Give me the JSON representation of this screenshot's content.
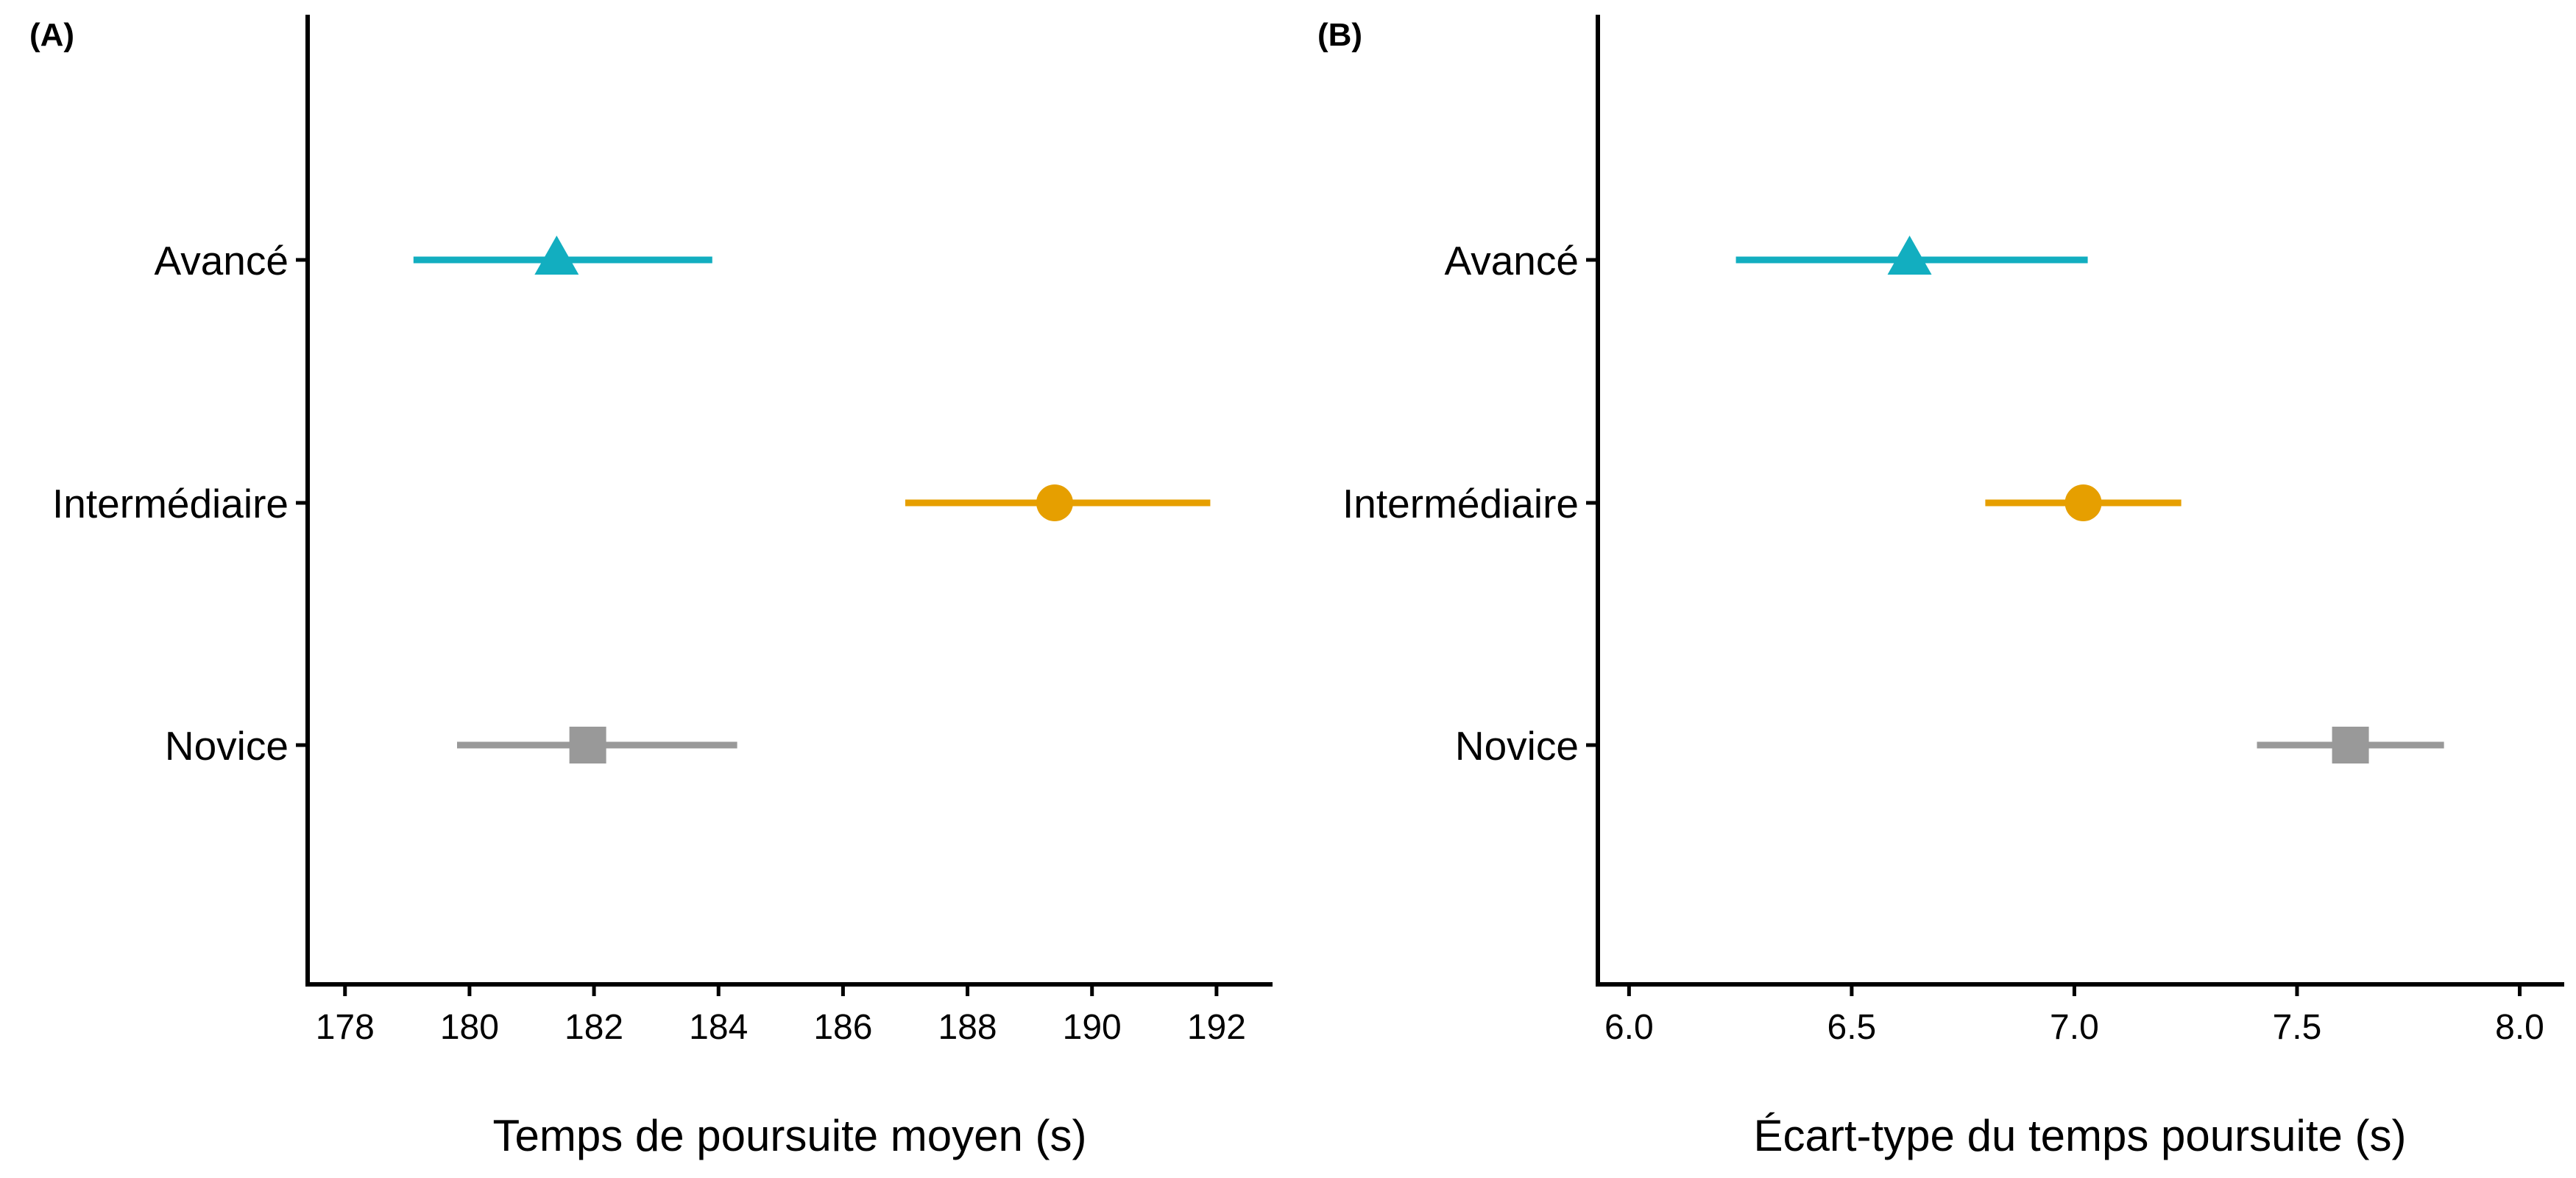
{
  "chart_data": [
    {
      "type": "scatter",
      "panel": "(A)",
      "xlabel": "Temps de poursuite moyen (s)",
      "xlim": [
        177.4,
        192.9
      ],
      "xticks": [
        "178",
        "180",
        "182",
        "184",
        "186",
        "188",
        "190",
        "192"
      ],
      "categories": [
        "Avancé",
        "Intermédiaire",
        "Novice"
      ],
      "points": [
        {
          "category": "Avancé",
          "value": 181.4,
          "low": 179.1,
          "high": 183.9,
          "color": "#12AEC0",
          "marker": "triangle-icon"
        },
        {
          "category": "Intermédiaire",
          "value": 189.4,
          "low": 187.0,
          "high": 191.9,
          "color": "#E69F00",
          "marker": "circle-icon"
        },
        {
          "category": "Novice",
          "value": 181.9,
          "low": 179.8,
          "high": 184.3,
          "color": "#999999",
          "marker": "square-icon"
        }
      ]
    },
    {
      "type": "scatter",
      "panel": "(B)",
      "xlabel": "Écart-type du temps poursuite (s)",
      "xlim": [
        5.93,
        8.1
      ],
      "xticks": [
        "6.0",
        "6.5",
        "7.0",
        "7.5",
        "8.0"
      ],
      "categories": [
        "Avancé",
        "Intermédiaire",
        "Novice"
      ],
      "points": [
        {
          "category": "Avancé",
          "value": 6.63,
          "low": 6.24,
          "high": 7.03,
          "color": "#12AEC0",
          "marker": "triangle-icon"
        },
        {
          "category": "Intermédiaire",
          "value": 7.02,
          "low": 6.8,
          "high": 7.24,
          "color": "#E69F00",
          "marker": "circle-icon"
        },
        {
          "category": "Novice",
          "value": 7.62,
          "low": 7.41,
          "high": 7.83,
          "color": "#999999",
          "marker": "square-icon"
        }
      ]
    }
  ]
}
